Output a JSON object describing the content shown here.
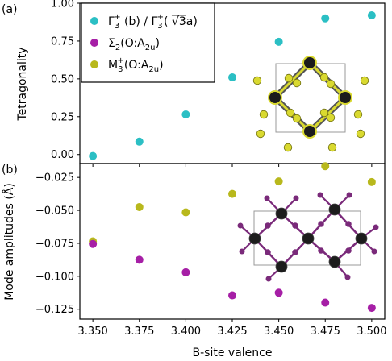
{
  "colors": {
    "cyan": "#2bbfc4",
    "magenta": "#a61fa6",
    "olive": "#b8b81c",
    "inset_atom_dark": "#1c1c1c",
    "inset_atom_yellow": "#d9d930",
    "inset_atom_purple": "#7a2a7a",
    "inset_box": "#999999"
  },
  "chart_data": [
    {
      "type": "scatter",
      "panel_label": "(a)",
      "xlabel": "",
      "ylabel": "Tetragonality",
      "xlim": [
        3.343,
        3.507
      ],
      "ylim": [
        -0.06,
        1.0
      ],
      "yticks": [
        0.0,
        0.25,
        0.5,
        0.75,
        1.0
      ],
      "ytick_labels": [
        "0.00",
        "0.25",
        "0.50",
        "0.75",
        "1.00"
      ],
      "legend_placement": "top-left",
      "series": [
        {
          "name": "Γ3+ (b) / Γ3+ (√3a)",
          "legend_rich": [
            "Γ",
            "3",
            "+",
            " (b) / Γ",
            "3",
            "+",
            "( ",
            "√3",
            "a)"
          ],
          "color_key": "cyan",
          "x": [
            3.35,
            3.375,
            3.4,
            3.425,
            3.45,
            3.475,
            3.5
          ],
          "y": [
            -0.01,
            0.085,
            0.265,
            0.51,
            0.745,
            0.9,
            0.92
          ]
        },
        {
          "name": "Σ2(O:A2u)",
          "legend_rich": [
            "Σ",
            "2",
            "(O:A",
            "2u",
            ")"
          ],
          "color_key": "magenta",
          "x": [],
          "y": []
        },
        {
          "name": "M3+(O:A2u)",
          "legend_rich": [
            "M",
            "3",
            "+",
            "(O:A",
            "2u",
            ")"
          ],
          "color_key": "olive",
          "x": [],
          "y": []
        }
      ]
    },
    {
      "type": "scatter",
      "panel_label": "(b)",
      "xlabel": "B-site valence",
      "ylabel": "Mode amplitudes (Å)",
      "xlim": [
        3.343,
        3.507
      ],
      "ylim": [
        -0.1325,
        -0.0145
      ],
      "xticks": [
        3.35,
        3.375,
        3.4,
        3.425,
        3.45,
        3.475,
        3.5
      ],
      "xtick_labels": [
        "3.350",
        "3.375",
        "3.400",
        "3.425",
        "3.450",
        "3.475",
        "3.500"
      ],
      "yticks": [
        -0.125,
        -0.1,
        -0.075,
        -0.05,
        -0.025
      ],
      "ytick_labels": [
        "−0.125",
        "−0.100",
        "−0.075",
        "−0.050",
        "−0.025"
      ],
      "series": [
        {
          "name": "M3+(O:A2u)",
          "color_key": "olive",
          "x": [
            3.35,
            3.375,
            3.4,
            3.425,
            3.45,
            3.475,
            3.5
          ],
          "y": [
            -0.0735,
            -0.0475,
            -0.0515,
            -0.0375,
            -0.028,
            -0.0165,
            -0.0285
          ]
        },
        {
          "name": "Σ2(O:A2u)",
          "color_key": "magenta",
          "x": [
            3.35,
            3.375,
            3.4,
            3.425,
            3.45,
            3.475,
            3.5
          ],
          "y": [
            -0.0755,
            -0.0875,
            -0.097,
            -0.1145,
            -0.1125,
            -0.12,
            -0.124
          ]
        }
      ]
    }
  ]
}
